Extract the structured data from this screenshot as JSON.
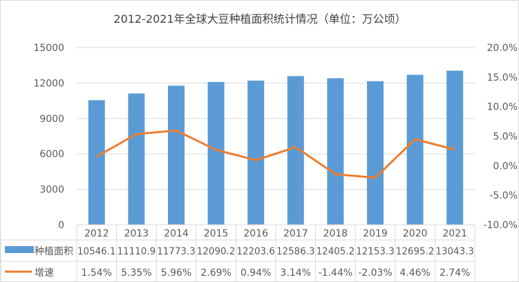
{
  "chart_data": {
    "type": "bar+line",
    "title": "2012-2021年全球大豆种植面积统计情况（单位：万公顷）",
    "categories": [
      "2012",
      "2013",
      "2014",
      "2015",
      "2016",
      "2017",
      "2018",
      "2019",
      "2020",
      "2021"
    ],
    "series": [
      {
        "name": "种植面积",
        "type": "bar",
        "axis": "left",
        "color": "#5b9bd5",
        "values": [
          10546.1,
          11110.9,
          11773.3,
          12090.2,
          12203.6,
          12586.3,
          12405.2,
          12153.3,
          12695.2,
          13043.3
        ],
        "labels": [
          "10546.1",
          "11110.9",
          "11773.3",
          "12090.2",
          "12203.6",
          "12586.3",
          "12405.2",
          "12153.3",
          "12695.2",
          "13043.3"
        ]
      },
      {
        "name": "增速",
        "type": "line",
        "axis": "right",
        "color": "#ed7d31",
        "values": [
          1.54,
          5.35,
          5.96,
          2.69,
          0.94,
          3.14,
          -1.44,
          -2.03,
          4.46,
          2.74
        ],
        "labels": [
          "1.54%",
          "5.35%",
          "5.96%",
          "2.69%",
          "0.94%",
          "3.14%",
          "-1.44%",
          "-2.03%",
          "4.46%",
          "2.74%"
        ]
      }
    ],
    "y_left": {
      "range": [
        0,
        15000
      ],
      "ticks": [
        "0",
        "3000",
        "6000",
        "9000",
        "12000",
        "15000"
      ]
    },
    "y_right": {
      "range": [
        -10,
        20
      ],
      "ticks": [
        "-10.0%",
        "-5.0%",
        "0.0%",
        "5.0%",
        "10.0%",
        "15.0%",
        "20.0%"
      ]
    },
    "grid": true,
    "legend": "data-table"
  }
}
